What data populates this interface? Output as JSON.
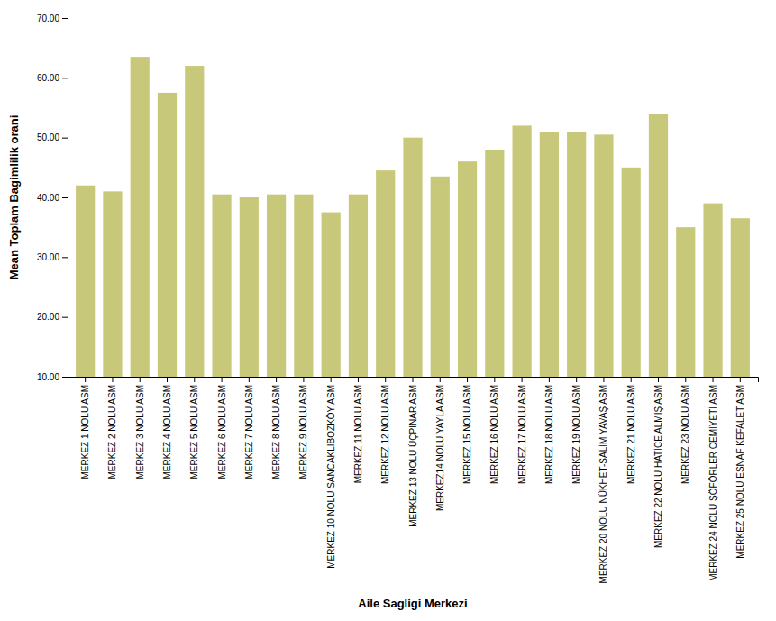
{
  "chart_data": {
    "type": "bar",
    "categories": [
      "MERKEZ 1 NOLU ASM",
      "MERKEZ 2 NOLU ASM",
      "MERKEZ 3 NOLU ASM",
      "MERKEZ 4 NOLU ASM",
      "MERKEZ 5 NOLU ASM",
      "MERKEZ 6 NOLU ASM",
      "MERKEZ 7 NOLU ASM",
      "MERKEZ 8 NOLU ASM",
      "MERKEZ 9 NOLU ASM",
      "MERKEZ 10 NOLU SANCAKLIBOZKÖY ASM",
      "MERKEZ 11 NOLU ASM",
      "MERKEZ 12 NOLU ASM",
      "MERKEZ 13 NOLU ÜÇPINAR ASM",
      "MERKEZ14 NOLU YAYLA ASM",
      "MERKEZ 15 NOLU ASM",
      "MERKEZ 16 NOLU ASM",
      "MERKEZ 17 NOLU ASM",
      "MERKEZ 18 NOLU ASM",
      "MERKEZ 19 NOLU ASM",
      "MERKEZ 20 NOLU NÜKHET-SALİM YAVAŞ ASM",
      "MERKEZ 21 NOLU ASM",
      "MERKEZ 22 NOLU HATİCE ALMIŞ ASM",
      "MERKEZ 23 NOLU ASM",
      "MERKEZ 24 NOLU ŞÖFÖRLER CEMİYETİ ASM",
      "MERKEZ 25 NOLU ESNAF KEFALET ASM"
    ],
    "values": [
      42.0,
      41.0,
      63.5,
      57.5,
      62.0,
      40.5,
      40.0,
      40.5,
      40.5,
      37.5,
      40.5,
      44.5,
      50.0,
      43.5,
      46.0,
      48.0,
      52.0,
      51.0,
      51.0,
      50.5,
      45.0,
      54.0,
      35.0,
      39.0,
      36.5
    ],
    "color": "#c8c87a",
    "xlabel": "Aile Sagligi Merkezi",
    "ylabel": "Mean Toplam Bagimlilik orani",
    "ylim": [
      10.0,
      70.0
    ],
    "yticks": [
      {
        "value": 10.0,
        "label": "10.00"
      },
      {
        "value": 20.0,
        "label": "20.00"
      },
      {
        "value": 30.0,
        "label": "30.00"
      },
      {
        "value": 40.0,
        "label": "40.00"
      },
      {
        "value": 50.0,
        "label": "50.00"
      },
      {
        "value": 60.0,
        "label": "60.00"
      },
      {
        "value": 70.0,
        "label": "70.00"
      }
    ],
    "grid": false
  }
}
